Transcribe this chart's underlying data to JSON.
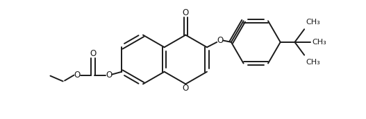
{
  "bg_color": "#ffffff",
  "line_color": "#1a1a1a",
  "line_width": 1.4,
  "font_size": 8.5,
  "figsize": [
    5.27,
    1.72
  ],
  "dpi": 100,
  "xlim": [
    0,
    10.54
  ],
  "ylim": [
    0,
    3.44
  ]
}
